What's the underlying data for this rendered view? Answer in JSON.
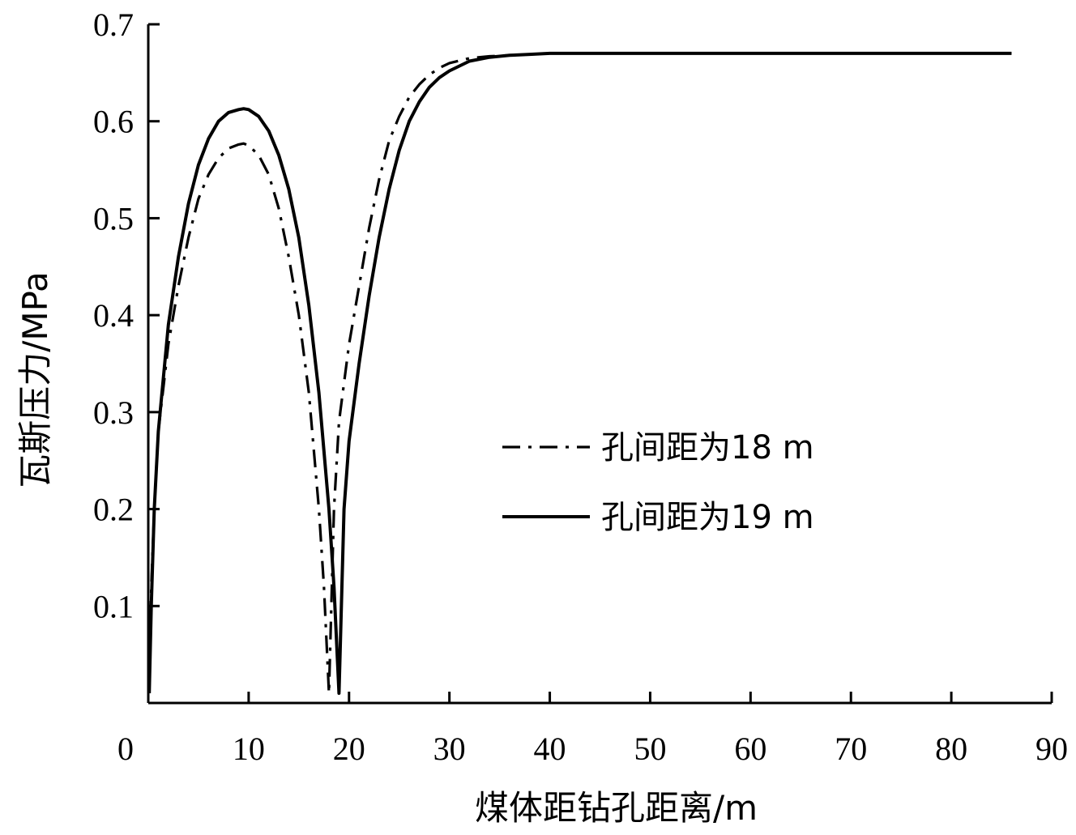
{
  "chart_data": {
    "type": "line",
    "xlabel": "煤体距钻孔距离/m",
    "ylabel": "瓦斯压力/MPa",
    "xlim": [
      0,
      90
    ],
    "ylim": [
      0,
      0.7
    ],
    "x_ticks": [
      0,
      10,
      20,
      30,
      40,
      50,
      60,
      70,
      80,
      90
    ],
    "y_ticks": [
      0.1,
      0.2,
      0.3,
      0.4,
      0.5,
      0.6,
      0.7
    ],
    "x_tick_labels": [
      "0",
      "10",
      "20",
      "30",
      "40",
      "50",
      "60",
      "70",
      "80",
      "90"
    ],
    "y_tick_labels": [
      "0.1",
      "0.2",
      "0.3",
      "0.4",
      "0.5",
      "0.6",
      "0.7"
    ],
    "grid": false,
    "legend_position": "center-right",
    "series": [
      {
        "name": "孔间距为18 m",
        "style": "dash-dot",
        "color": "#000000",
        "x": [
          0.1,
          0.3,
          0.6,
          1,
          2,
          3,
          4,
          5,
          6,
          7,
          8,
          9,
          9.5,
          10,
          11,
          12,
          13,
          14,
          15,
          16,
          17,
          17.5,
          18,
          18.5,
          19,
          19.5,
          20,
          21,
          22,
          23,
          24,
          25,
          26,
          27,
          28,
          29,
          30,
          32,
          34,
          36,
          38,
          40,
          45,
          50,
          60,
          70,
          80,
          86
        ],
        "y": [
          0.01,
          0.12,
          0.2,
          0.28,
          0.37,
          0.43,
          0.48,
          0.52,
          0.545,
          0.562,
          0.572,
          0.576,
          0.577,
          0.575,
          0.565,
          0.545,
          0.51,
          0.46,
          0.4,
          0.32,
          0.2,
          0.12,
          0.01,
          0.2,
          0.29,
          0.33,
          0.37,
          0.43,
          0.49,
          0.54,
          0.58,
          0.605,
          0.625,
          0.638,
          0.648,
          0.655,
          0.66,
          0.665,
          0.667,
          0.668,
          0.669,
          0.67,
          0.67,
          0.67,
          0.67,
          0.67,
          0.67,
          0.67
        ]
      },
      {
        "name": "孔间距为19 m",
        "style": "solid",
        "color": "#000000",
        "x": [
          0.1,
          0.3,
          0.6,
          1,
          2,
          3,
          4,
          5,
          6,
          7,
          8,
          9,
          9.5,
          10,
          11,
          12,
          13,
          14,
          15,
          16,
          17,
          18,
          18.5,
          19,
          19.5,
          20,
          21,
          22,
          23,
          24,
          25,
          26,
          27,
          28,
          29,
          30,
          32,
          34,
          36,
          38,
          40,
          45,
          50,
          60,
          70,
          80,
          86
        ],
        "y": [
          0.01,
          0.1,
          0.2,
          0.28,
          0.39,
          0.46,
          0.515,
          0.555,
          0.582,
          0.6,
          0.609,
          0.612,
          0.613,
          0.612,
          0.605,
          0.59,
          0.565,
          0.53,
          0.48,
          0.41,
          0.32,
          0.2,
          0.12,
          0.01,
          0.2,
          0.27,
          0.35,
          0.42,
          0.48,
          0.53,
          0.57,
          0.6,
          0.62,
          0.635,
          0.645,
          0.652,
          0.662,
          0.666,
          0.668,
          0.669,
          0.67,
          0.67,
          0.67,
          0.67,
          0.67,
          0.67,
          0.67
        ]
      }
    ]
  }
}
